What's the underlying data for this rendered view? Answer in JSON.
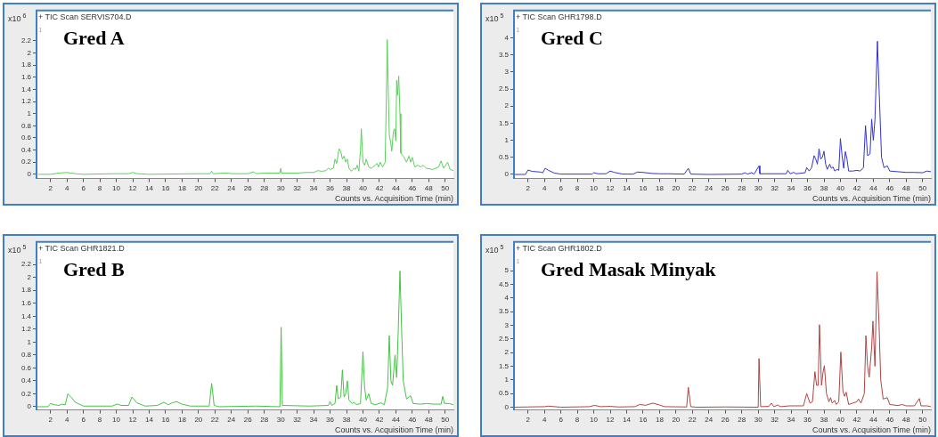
{
  "chart_data": [
    {
      "type": "line",
      "title": "+ TIC Scan SERVIS704.D",
      "ylabel": "x10$^{6}$",
      "xlabel": "Counts vs. Acquisition Time (min)",
      "annotations": [
        "Gred A",
        "1"
      ],
      "color": "#5ccf5c",
      "marker": "none",
      "legend": false,
      "grid": false,
      "xlim": [
        0.3,
        51
      ],
      "xticks": [
        2,
        4,
        6,
        8,
        10,
        12,
        14,
        16,
        18,
        20,
        22,
        24,
        26,
        28,
        30,
        32,
        34,
        36,
        38,
        40,
        42,
        44,
        46,
        48,
        50
      ],
      "ylim": [
        -0.07,
        2.7
      ],
      "yticks": [
        0,
        0.2,
        0.4,
        0.6,
        0.8,
        1,
        1.2,
        1.4,
        1.6,
        1.8,
        2,
        2.2
      ],
      "x": [
        0.5,
        2,
        3,
        4,
        5,
        6,
        10,
        11.5,
        12,
        12.5,
        14,
        20,
        21.4,
        21.6,
        21.8,
        23.5,
        24,
        26,
        26.7,
        27,
        28,
        29,
        29.9,
        30,
        30.1,
        32,
        33,
        34,
        34.5,
        35,
        35.5,
        35.8,
        36,
        36.4,
        36.6,
        36.8,
        37.1,
        37.3,
        37.5,
        37.7,
        37.9,
        38.1,
        38.3,
        38.6,
        38.9,
        39.1,
        39.3,
        39.5,
        39.7,
        39.8,
        40,
        40.2,
        40.4,
        40.7,
        41,
        41.5,
        41.7,
        41.9,
        42.1,
        42.4,
        42.7,
        42.85,
        42.95,
        43.1,
        43.2,
        43.4,
        43.5,
        43.7,
        43.85,
        44,
        44.1,
        44.2,
        44.35,
        44.5,
        44.6,
        44.9,
        45.3,
        45.6,
        45.8,
        46,
        46.3,
        46.7,
        47,
        47.3,
        47.7,
        48.5,
        49.2,
        49.5,
        49.8,
        50.3,
        50.6,
        51
      ],
      "values": [
        0,
        0,
        0.02,
        0.03,
        0.01,
        0,
        0.01,
        0.01,
        0.03,
        0.01,
        0,
        0.01,
        0.01,
        0.05,
        0.01,
        0.02,
        0.01,
        0.01,
        0.04,
        0.01,
        0.02,
        0.02,
        0.02,
        0.1,
        0.02,
        0.02,
        0.03,
        0.03,
        0.06,
        0.05,
        0.06,
        0.1,
        0.08,
        0.1,
        0.25,
        0.18,
        0.42,
        0.38,
        0.25,
        0.3,
        0.2,
        0.25,
        0.1,
        0.05,
        0.1,
        0.08,
        0.15,
        0.05,
        0.4,
        0.75,
        0.2,
        0.15,
        0.25,
        0.12,
        0.1,
        0.15,
        0.18,
        0.12,
        0.2,
        0.12,
        0.2,
        1.3,
        2.22,
        1.25,
        0.65,
        0.5,
        0.38,
        0.7,
        0.75,
        0.55,
        1.55,
        1.3,
        1.62,
        1,
        0.35,
        0.3,
        0.2,
        0.3,
        0.2,
        0.28,
        0.12,
        0.15,
        0.12,
        0.15,
        0.1,
        0.08,
        0.12,
        0.22,
        0.1,
        0.2,
        0.08,
        0.06
      ]
    },
    {
      "type": "line",
      "title": "+ TIC Scan GHR1798.D",
      "ylabel": "x10$^{5}$",
      "xlabel": "Counts vs. Acquisition Time (min)",
      "annotations": [
        "Gred C",
        "1"
      ],
      "color": "#3333cc",
      "marker": "none",
      "legend": false,
      "grid": false,
      "xlim": [
        0.3,
        51
      ],
      "xticks": [
        2,
        4,
        6,
        8,
        10,
        12,
        14,
        16,
        18,
        20,
        22,
        24,
        26,
        28,
        30,
        32,
        34,
        36,
        38,
        40,
        42,
        44,
        46,
        48,
        50
      ],
      "ylim": [
        -0.12,
        4.8
      ],
      "yticks": [
        0,
        0.5,
        1,
        1.5,
        2,
        2.5,
        3,
        3.5,
        4
      ],
      "x": [
        0.3,
        1.7,
        2,
        2.5,
        3.5,
        3.8,
        4.1,
        4.5,
        5.2,
        6,
        9.8,
        10,
        10.5,
        11.5,
        12,
        12.5,
        13.5,
        14.8,
        15.3,
        16,
        17,
        18,
        19,
        21,
        21.5,
        21.8,
        24,
        28,
        28.4,
        28.7,
        29.2,
        29.5,
        30.1,
        30.2,
        33.4,
        33.6,
        33.9,
        34.3,
        34.6,
        35.7,
        35.9,
        36.2,
        36.5,
        36.8,
        37,
        37.2,
        37.4,
        37.6,
        37.8,
        38,
        38.2,
        38.4,
        38.7,
        38.9,
        39.1,
        39.3,
        39.6,
        39.8,
        40,
        40.2,
        40.4,
        40.6,
        40.8,
        41,
        41.5,
        42,
        42.4,
        42.8,
        43.05,
        43.3,
        43.6,
        43.8,
        44,
        44.2,
        44.5,
        44.7,
        45,
        45.3,
        45.7,
        46,
        47,
        48,
        49,
        50,
        50.5,
        51
      ],
      "values": [
        0,
        0,
        0.13,
        0.09,
        0.07,
        0.05,
        0.18,
        0.12,
        0.04,
        0.01,
        0.01,
        0.05,
        0.02,
        0.02,
        0.1,
        0.06,
        0.01,
        0.01,
        0.07,
        0.06,
        0.03,
        0.02,
        0.02,
        0.01,
        0.18,
        0.01,
        0,
        0.01,
        0.05,
        0.01,
        0.05,
        0.01,
        0.25,
        0.02,
        0.02,
        0.12,
        0.02,
        0.06,
        0.02,
        0.05,
        0.2,
        0.1,
        0.2,
        0.55,
        0.45,
        0.3,
        0.75,
        0.45,
        0.5,
        0.68,
        0.3,
        0.15,
        0.3,
        0.18,
        0.22,
        0.1,
        0.15,
        0.12,
        1.05,
        0.55,
        0.18,
        0.67,
        0.45,
        0.1,
        0.1,
        0.12,
        0.1,
        0.2,
        1.43,
        0.55,
        0.6,
        1.62,
        1,
        1.6,
        3.9,
        2.5,
        0.5,
        0.2,
        0.25,
        0.1,
        0.08,
        0.06,
        0.06,
        0.05,
        0.1,
        0.08
      ]
    },
    {
      "type": "line",
      "title": "+ TIC Scan GHR1821.D",
      "ylabel": "x10$^{5}$",
      "xlabel": "Counts vs. Acquisition Time (min)",
      "annotations": [
        "Gred B",
        "1"
      ],
      "color": "#44c444",
      "marker": "none",
      "legend": false,
      "grid": false,
      "xlim": [
        0.3,
        51
      ],
      "xticks": [
        2,
        4,
        6,
        8,
        10,
        12,
        14,
        16,
        18,
        20,
        22,
        24,
        26,
        28,
        30,
        32,
        34,
        36,
        38,
        40,
        42,
        44,
        46,
        48,
        50
      ],
      "ylim": [
        -0.05,
        2.55
      ],
      "yticks": [
        0,
        0.2,
        0.4,
        0.6,
        0.8,
        1,
        1.2,
        1.4,
        1.6,
        1.8,
        2,
        2.2
      ],
      "x": [
        0.3,
        1.7,
        2,
        2.5,
        3,
        3.4,
        3.8,
        4.1,
        4.5,
        5,
        6,
        9.5,
        10.1,
        10.6,
        11.5,
        11.9,
        12.5,
        13.5,
        15,
        15.8,
        16.3,
        16.8,
        17.3,
        18,
        19,
        21.3,
        21.6,
        21.9,
        22.5,
        27,
        29.9,
        30.05,
        30.2,
        33.5,
        35.8,
        36,
        36.2,
        36.6,
        36.8,
        37,
        37.3,
        37.5,
        37.7,
        37.9,
        38.1,
        38.3,
        38.7,
        38.9,
        39.2,
        39.7,
        40,
        40.2,
        40.4,
        40.7,
        41,
        41.5,
        42.2,
        42.6,
        43,
        43.2,
        43.4,
        43.6,
        43.9,
        44.1,
        44.3,
        44.5,
        44.7,
        44.9,
        45.3,
        45.8,
        46.1,
        47,
        47.8,
        48.5,
        49.5,
        49.7,
        49.9,
        50.5,
        51
      ],
      "values": [
        0,
        0,
        0.05,
        0.03,
        0.02,
        0.04,
        0.03,
        0.2,
        0.15,
        0.07,
        0.01,
        0.01,
        0.04,
        0.02,
        0.02,
        0.15,
        0.06,
        0.01,
        0.02,
        0.07,
        0.03,
        0.06,
        0.08,
        0.04,
        0.01,
        0.01,
        0.36,
        0.02,
        0,
        0.01,
        0,
        1.23,
        0.02,
        0.01,
        0.02,
        0.08,
        0.02,
        0.05,
        0.33,
        0.12,
        0.15,
        0.57,
        0.15,
        0.2,
        0.4,
        0.1,
        0.05,
        0.07,
        0.03,
        0.05,
        0.85,
        0.3,
        0.1,
        0.2,
        0.05,
        0.03,
        0.06,
        0.03,
        0.3,
        1.1,
        0.4,
        0.33,
        0.8,
        0.45,
        1.2,
        2.1,
        1.2,
        0.4,
        0.12,
        0.17,
        0.05,
        0.04,
        0.05,
        0.04,
        0.04,
        0.16,
        0.05,
        0.05,
        0.03
      ]
    },
    {
      "type": "line",
      "title": "+ TIC Scan GHR1802.D",
      "ylabel": "x10$^{5}$",
      "xlabel": "Counts vs. Acquisition Time (min)",
      "annotations": [
        "Gred Masak Minyak",
        "1"
      ],
      "color": "#b04444",
      "marker": "none",
      "legend": false,
      "grid": false,
      "xlim": [
        0.3,
        51
      ],
      "xticks": [
        2,
        4,
        6,
        8,
        10,
        12,
        14,
        16,
        18,
        20,
        22,
        24,
        26,
        28,
        30,
        32,
        34,
        36,
        38,
        40,
        42,
        44,
        46,
        48,
        50
      ],
      "ylim": [
        -0.1,
        6.05
      ],
      "yticks": [
        0,
        0.5,
        1,
        1.5,
        2,
        2.5,
        3,
        3.5,
        4,
        4.5,
        5
      ],
      "x": [
        0.3,
        2,
        4,
        4.5,
        6,
        9.5,
        10.1,
        10.8,
        12,
        13,
        15,
        15.6,
        16.3,
        17.2,
        18,
        18.6,
        21.3,
        21.5,
        21.8,
        22.5,
        26,
        30,
        30.1,
        30.3,
        31.3,
        31.6,
        31.9,
        32.4,
        32.7,
        33.8,
        34.5,
        35.5,
        35.9,
        36.3,
        36.6,
        36.9,
        37.1,
        37.3,
        37.45,
        37.7,
        37.9,
        38.05,
        38.3,
        38.6,
        38.8,
        39,
        39.3,
        39.5,
        39.8,
        40.05,
        40.3,
        40.5,
        40.7,
        41,
        41.5,
        42,
        42.2,
        42.5,
        42.9,
        43.1,
        43.3,
        43.5,
        43.8,
        43.95,
        44.2,
        44.45,
        44.7,
        44.9,
        45.2,
        45.7,
        46,
        47,
        47.5,
        48,
        49,
        49.6,
        49.8,
        50.5,
        51
      ],
      "values": [
        0,
        0.01,
        0.02,
        0.04,
        0,
        0.02,
        0.07,
        0.02,
        0.03,
        0.01,
        0.02,
        0.1,
        0.07,
        0.15,
        0.08,
        0.02,
        0.01,
        0.73,
        0.02,
        0,
        0.01,
        0,
        1.78,
        0.02,
        0.03,
        0.15,
        0.02,
        0.08,
        0.02,
        0.05,
        0.05,
        0.05,
        0.5,
        0.15,
        0.2,
        1.3,
        0.8,
        0.8,
        3.02,
        0.8,
        1.3,
        1.52,
        0.5,
        0.2,
        0.35,
        0.15,
        0.25,
        0.1,
        0.2,
        2.02,
        0.6,
        0.4,
        0.55,
        0.1,
        0.15,
        0.2,
        0.3,
        0.15,
        0.5,
        2.62,
        1.5,
        1.1,
        2.2,
        3.15,
        1.5,
        4.95,
        3,
        1,
        0.3,
        0.35,
        0.1,
        0.06,
        0.1,
        0.05,
        0.05,
        0.32,
        0.05,
        0.05,
        0.02
      ]
    }
  ]
}
